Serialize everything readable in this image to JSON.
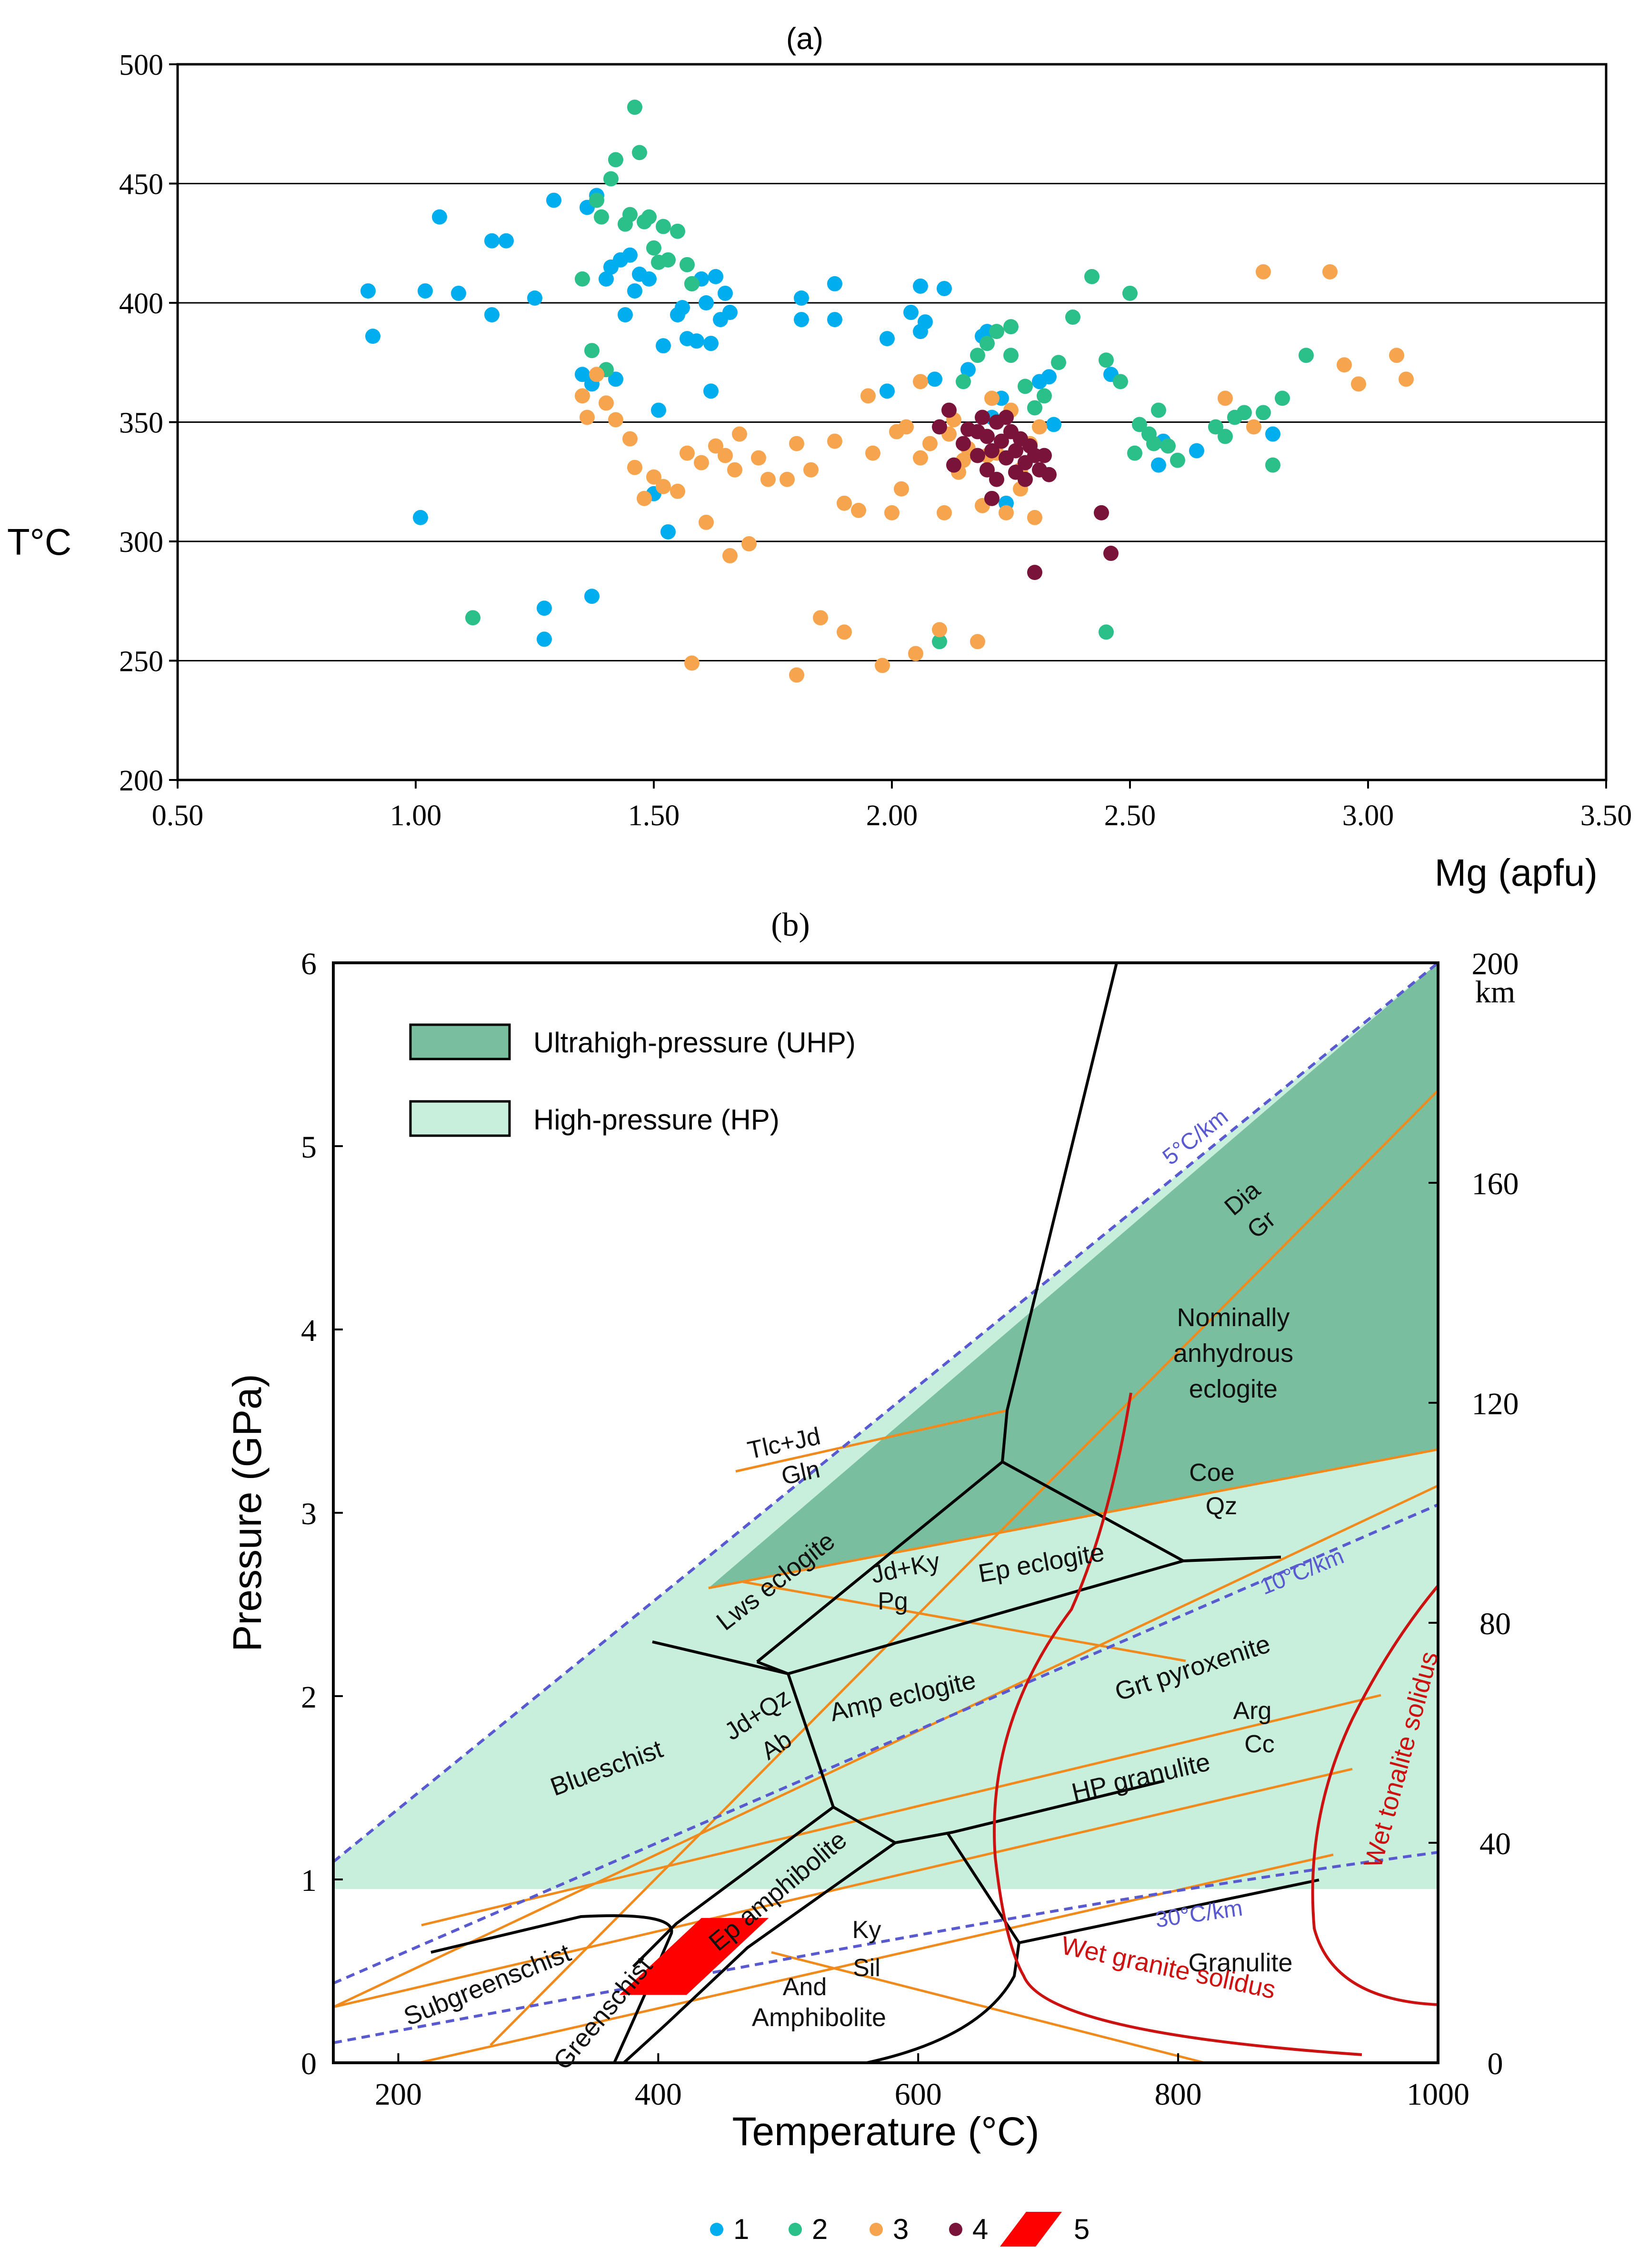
{
  "chart_data": [
    {
      "panel": "(a)",
      "type": "scatter",
      "title": "(a)",
      "xlabel": "Mg (apfu)",
      "ylabel": "T°C",
      "xlim": [
        0.5,
        3.5
      ],
      "ylim": [
        200,
        500
      ],
      "xticks": [
        "0.50",
        "1.00",
        "1.50",
        "2.00",
        "2.50",
        "3.00",
        "3.50"
      ],
      "yticks": [
        "200",
        "250",
        "300",
        "350",
        "400",
        "450",
        "500"
      ],
      "grid": "horizontal",
      "series": [
        {
          "name": "1",
          "color": "#00aeef",
          "points": [
            [
              0.9,
              405
            ],
            [
              0.91,
              386
            ],
            [
              1.02,
              405
            ],
            [
              1.05,
              436
            ],
            [
              1.09,
              404
            ],
            [
              1.16,
              395
            ],
            [
              1.16,
              426
            ],
            [
              1.19,
              426
            ],
            [
              1.25,
              402
            ],
            [
              1.27,
              272
            ],
            [
              1.27,
              259
            ],
            [
              1.29,
              443
            ],
            [
              1.35,
              370
            ],
            [
              1.36,
              440
            ],
            [
              1.37,
              366
            ],
            [
              1.37,
              277
            ],
            [
              1.38,
              445
            ],
            [
              1.4,
              410
            ],
            [
              1.41,
              415
            ],
            [
              1.42,
              368
            ],
            [
              1.43,
              418
            ],
            [
              1.44,
              395
            ],
            [
              1.45,
              420
            ],
            [
              1.46,
              405
            ],
            [
              1.47,
              412
            ],
            [
              1.49,
              410
            ],
            [
              1.5,
              320
            ],
            [
              1.51,
              355
            ],
            [
              1.52,
              382
            ],
            [
              1.53,
              304
            ],
            [
              1.55,
              395
            ],
            [
              1.56,
              398
            ],
            [
              1.57,
              385
            ],
            [
              1.58,
              408
            ],
            [
              1.59,
              384
            ],
            [
              1.6,
              410
            ],
            [
              1.61,
              400
            ],
            [
              1.62,
              363
            ],
            [
              1.62,
              383
            ],
            [
              1.63,
              411
            ],
            [
              1.64,
              393
            ],
            [
              1.65,
              404
            ],
            [
              1.66,
              396
            ],
            [
              1.81,
              402
            ],
            [
              1.81,
              393
            ],
            [
              1.88,
              408
            ],
            [
              1.88,
              393
            ],
            [
              1.99,
              385
            ],
            [
              1.99,
              363
            ],
            [
              2.04,
              396
            ],
            [
              2.06,
              407
            ],
            [
              2.06,
              388
            ],
            [
              2.07,
              392
            ],
            [
              2.09,
              368
            ],
            [
              2.11,
              406
            ],
            [
              2.16,
              372
            ],
            [
              2.19,
              386
            ],
            [
              2.2,
              388
            ],
            [
              2.21,
              352
            ],
            [
              2.23,
              360
            ],
            [
              2.24,
              316
            ],
            [
              2.31,
              367
            ],
            [
              2.33,
              369
            ],
            [
              2.34,
              349
            ],
            [
              2.46,
              370
            ],
            [
              2.56,
              332
            ],
            [
              2.57,
              342
            ],
            [
              2.64,
              338
            ],
            [
              2.8,
              345
            ],
            [
              1.01,
              310
            ]
          ]
        },
        {
          "name": "2",
          "color": "#2bbf8a",
          "points": [
            [
              1.12,
              268
            ],
            [
              1.35,
              410
            ],
            [
              1.37,
              380
            ],
            [
              1.38,
              443
            ],
            [
              1.39,
              436
            ],
            [
              1.4,
              372
            ],
            [
              1.41,
              452
            ],
            [
              1.42,
              460
            ],
            [
              1.44,
              433
            ],
            [
              1.45,
              437
            ],
            [
              1.46,
              482
            ],
            [
              1.47,
              463
            ],
            [
              1.48,
              434
            ],
            [
              1.49,
              436
            ],
            [
              1.5,
              423
            ],
            [
              1.51,
              417
            ],
            [
              1.52,
              432
            ],
            [
              1.53,
              418
            ],
            [
              1.55,
              430
            ],
            [
              1.57,
              416
            ],
            [
              1.58,
              408
            ],
            [
              2.1,
              258
            ],
            [
              2.15,
              367
            ],
            [
              2.18,
              378
            ],
            [
              2.2,
              383
            ],
            [
              2.22,
              388
            ],
            [
              2.25,
              378
            ],
            [
              2.28,
              365
            ],
            [
              2.3,
              356
            ],
            [
              2.32,
              361
            ],
            [
              2.35,
              375
            ],
            [
              2.38,
              394
            ],
            [
              2.42,
              411
            ],
            [
              2.45,
              262
            ],
            [
              2.45,
              376
            ],
            [
              2.48,
              367
            ],
            [
              2.5,
              404
            ],
            [
              2.51,
              337
            ],
            [
              2.52,
              349
            ],
            [
              2.54,
              345
            ],
            [
              2.55,
              341
            ],
            [
              2.56,
              355
            ],
            [
              2.58,
              340
            ],
            [
              2.6,
              334
            ],
            [
              2.68,
              348
            ],
            [
              2.7,
              344
            ],
            [
              2.72,
              352
            ],
            [
              2.74,
              354
            ],
            [
              2.78,
              354
            ],
            [
              2.8,
              332
            ],
            [
              2.82,
              360
            ],
            [
              2.87,
              378
            ],
            [
              2.25,
              390
            ]
          ]
        },
        {
          "name": "3",
          "color": "#f7a44f",
          "points": [
            [
              1.35,
              361
            ],
            [
              1.36,
              352
            ],
            [
              1.38,
              370
            ],
            [
              1.4,
              358
            ],
            [
              1.42,
              351
            ],
            [
              1.45,
              343
            ],
            [
              1.46,
              331
            ],
            [
              1.48,
              318
            ],
            [
              1.5,
              327
            ],
            [
              1.52,
              323
            ],
            [
              1.55,
              321
            ],
            [
              1.57,
              337
            ],
            [
              1.58,
              249
            ],
            [
              1.6,
              333
            ],
            [
              1.61,
              308
            ],
            [
              1.63,
              340
            ],
            [
              1.65,
              336
            ],
            [
              1.66,
              294
            ],
            [
              1.67,
              330
            ],
            [
              1.68,
              345
            ],
            [
              1.7,
              299
            ],
            [
              1.72,
              335
            ],
            [
              1.74,
              326
            ],
            [
              1.78,
              326
            ],
            [
              1.8,
              341
            ],
            [
              1.8,
              244
            ],
            [
              1.83,
              330
            ],
            [
              1.85,
              268
            ],
            [
              1.88,
              342
            ],
            [
              1.9,
              262
            ],
            [
              1.93,
              313
            ],
            [
              1.95,
              361
            ],
            [
              1.98,
              248
            ],
            [
              2.0,
              312
            ],
            [
              2.01,
              346
            ],
            [
              2.03,
              348
            ],
            [
              2.05,
              253
            ],
            [
              2.06,
              335
            ],
            [
              2.08,
              341
            ],
            [
              2.1,
              263
            ],
            [
              2.11,
              312
            ],
            [
              2.13,
              351
            ],
            [
              2.15,
              334
            ],
            [
              2.18,
              258
            ],
            [
              2.2,
              336
            ],
            [
              2.22,
              337
            ],
            [
              2.24,
              312
            ],
            [
              2.25,
              355
            ],
            [
              2.27,
              322
            ],
            [
              2.29,
              341
            ],
            [
              2.3,
              310
            ],
            [
              2.31,
              348
            ],
            [
              2.06,
              367
            ],
            [
              2.12,
              345
            ],
            [
              2.16,
              339
            ],
            [
              2.21,
              360
            ],
            [
              2.78,
              413
            ],
            [
              2.92,
              413
            ],
            [
              2.95,
              374
            ],
            [
              2.98,
              366
            ],
            [
              3.06,
              378
            ],
            [
              3.08,
              368
            ],
            [
              2.7,
              360
            ],
            [
              2.76,
              348
            ],
            [
              1.9,
              316
            ],
            [
              1.96,
              337
            ],
            [
              2.02,
              322
            ],
            [
              2.14,
              329
            ],
            [
              2.19,
              315
            ],
            [
              2.27,
              330
            ]
          ]
        },
        {
          "name": "4",
          "color": "#7a1339",
          "points": [
            [
              2.1,
              348
            ],
            [
              2.12,
              355
            ],
            [
              2.13,
              332
            ],
            [
              2.15,
              341
            ],
            [
              2.16,
              347
            ],
            [
              2.18,
              336
            ],
            [
              2.19,
              352
            ],
            [
              2.2,
              344
            ],
            [
              2.2,
              330
            ],
            [
              2.21,
              338
            ],
            [
              2.22,
              350
            ],
            [
              2.22,
              326
            ],
            [
              2.23,
              342
            ],
            [
              2.24,
              335
            ],
            [
              2.25,
              346
            ],
            [
              2.26,
              329
            ],
            [
              2.26,
              338
            ],
            [
              2.27,
              343
            ],
            [
              2.28,
              333
            ],
            [
              2.28,
              326
            ],
            [
              2.29,
              340
            ],
            [
              2.3,
              336
            ],
            [
              2.31,
              330
            ],
            [
              2.32,
              336
            ],
            [
              2.33,
              328
            ],
            [
              2.21,
              318
            ],
            [
              2.3,
              287
            ],
            [
              2.44,
              312
            ],
            [
              2.46,
              295
            ],
            [
              2.18,
              346
            ],
            [
              2.24,
              352
            ]
          ]
        }
      ]
    },
    {
      "panel": "(b)",
      "type": "phase-diagram",
      "title": "(b)",
      "xlabel": "Temperature (°C)",
      "ylabel": "Pressure (GPa)",
      "xlim": [
        150,
        1000
      ],
      "ylim": [
        0,
        6
      ],
      "depth_range_km": [
        0,
        200
      ],
      "xticks": [
        "200",
        "400",
        "600",
        "800",
        "1000"
      ],
      "yticks": [
        "0",
        "1",
        "2",
        "3",
        "4",
        "5",
        "6"
      ],
      "depth_ticks": [
        "0",
        "40",
        "80",
        "120",
        "160",
        "200"
      ],
      "depth_unit": "km",
      "legend": [
        {
          "label": "Ultrahigh-pressure (UHP)",
          "color": "#79bf9f"
        },
        {
          "label": "High-pressure (HP)",
          "color": "#c8eedc"
        }
      ],
      "facies_labels": [
        "Blueschist",
        "Lws eclogite",
        "Ep eclogite",
        "Amp eclogite",
        "Nominally",
        "anhydrous",
        "eclogite",
        "Grt pyroxenite",
        "HP granulite",
        "Granulite",
        "Amphibolite",
        "Ep amphibolite",
        "Greenschist",
        "Subgreenschist"
      ],
      "reaction_labels": [
        "Tlc+Jd",
        "Gln",
        "Dia",
        "Gr",
        "Coe",
        "Qz",
        "Jd+Ky",
        "Pg",
        "Jd+Qz",
        "Ab",
        "Arg",
        "Cc",
        "Ky",
        "Sil",
        "And"
      ],
      "gradient_labels": [
        "5°C/km",
        "10°C/km",
        "30°C/km"
      ],
      "solidus_labels": [
        "Wet granite solidus",
        "Wet tonalite solidus"
      ],
      "sample_field": {
        "T": [
          370,
          485
        ],
        "P": [
          0.37,
          0.79
        ],
        "color": "#ff0000"
      }
    }
  ],
  "legend": {
    "items": [
      {
        "label": "1",
        "color": "#00aeef"
      },
      {
        "label": "2",
        "color": "#2bbf8a"
      },
      {
        "label": "3",
        "color": "#f7a44f"
      },
      {
        "label": "4",
        "color": "#7a1339"
      },
      {
        "label": "5",
        "color": "#ff0000"
      }
    ]
  },
  "colors": {
    "uhp": "#79bf9f",
    "hp": "#c8eedc",
    "reaction": "#f08a1c",
    "solidus": "#cc1111",
    "gradient": "#5a5ad0",
    "boundary": "#000000"
  }
}
